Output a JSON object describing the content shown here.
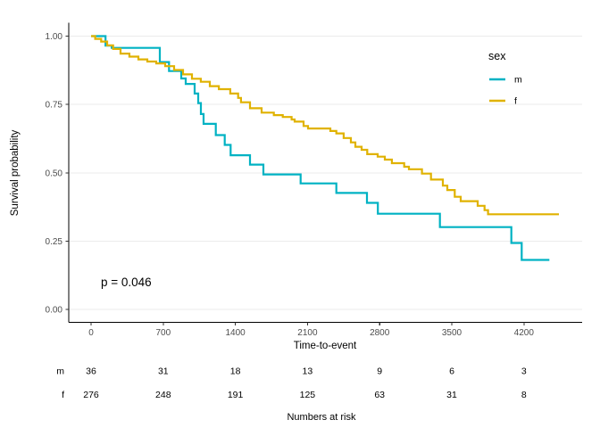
{
  "chart_data": {
    "type": "line",
    "subtype": "kaplan-meier-step",
    "title": "",
    "xlabel": "Time-to-event",
    "ylabel": "Survival probability",
    "x_tick_values": [
      0,
      700,
      1400,
      2100,
      2800,
      3500,
      4200
    ],
    "x_tick_labels": [
      "0",
      "700",
      "1400",
      "2100",
      "2800",
      "3500",
      "4200"
    ],
    "y_tick_values": [
      0,
      0.25,
      0.5,
      0.75,
      1
    ],
    "y_tick_labels": [
      "0.00",
      "0.25",
      "0.50",
      "0.75",
      "1.00"
    ],
    "xlim": [
      -230,
      4770
    ],
    "ylim": [
      -0.05,
      1.05
    ],
    "grid": "horizontal-only",
    "p_value_label": "p = 0.046",
    "legend": {
      "title": "sex",
      "position": "inside-top-right",
      "entries": [
        {
          "label": "m",
          "color": "#00b2c3"
        },
        {
          "label": "f",
          "color": "#e0b200"
        }
      ]
    },
    "series": [
      {
        "name": "m",
        "color": "#00b2c3",
        "end_time": 4447,
        "points": [
          [
            0,
            1.0
          ],
          [
            140,
            0.965
          ],
          [
            200,
            0.957
          ],
          [
            667,
            0.905
          ],
          [
            756,
            0.872
          ],
          [
            875,
            0.845
          ],
          [
            918,
            0.825
          ],
          [
            1005,
            0.79
          ],
          [
            1040,
            0.755
          ],
          [
            1066,
            0.715
          ],
          [
            1092,
            0.679
          ],
          [
            1210,
            0.638
          ],
          [
            1297,
            0.602
          ],
          [
            1354,
            0.564
          ],
          [
            1542,
            0.53
          ],
          [
            1672,
            0.494
          ],
          [
            2033,
            0.461
          ],
          [
            2380,
            0.426
          ],
          [
            2677,
            0.39
          ],
          [
            2783,
            0.35
          ],
          [
            3385,
            0.301
          ],
          [
            4078,
            0.243
          ],
          [
            4178,
            0.181
          ]
        ]
      },
      {
        "name": "f",
        "color": "#e0b200",
        "end_time": 4540,
        "points": [
          [
            0,
            1.0
          ],
          [
            40,
            0.99
          ],
          [
            98,
            0.98
          ],
          [
            156,
            0.966
          ],
          [
            214,
            0.953
          ],
          [
            286,
            0.936
          ],
          [
            372,
            0.925
          ],
          [
            459,
            0.915
          ],
          [
            546,
            0.907
          ],
          [
            632,
            0.9
          ],
          [
            719,
            0.89
          ],
          [
            806,
            0.876
          ],
          [
            892,
            0.86
          ],
          [
            979,
            0.844
          ],
          [
            1065,
            0.833
          ],
          [
            1152,
            0.817
          ],
          [
            1240,
            0.806
          ],
          [
            1351,
            0.79
          ],
          [
            1427,
            0.774
          ],
          [
            1455,
            0.758
          ],
          [
            1542,
            0.736
          ],
          [
            1655,
            0.72
          ],
          [
            1773,
            0.711
          ],
          [
            1860,
            0.704
          ],
          [
            1946,
            0.695
          ],
          [
            1975,
            0.687
          ],
          [
            2062,
            0.671
          ],
          [
            2105,
            0.662
          ],
          [
            2322,
            0.653
          ],
          [
            2380,
            0.644
          ],
          [
            2451,
            0.627
          ],
          [
            2521,
            0.611
          ],
          [
            2564,
            0.595
          ],
          [
            2625,
            0.584
          ],
          [
            2680,
            0.568
          ],
          [
            2781,
            0.559
          ],
          [
            2850,
            0.548
          ],
          [
            2919,
            0.535
          ],
          [
            3038,
            0.522
          ],
          [
            3084,
            0.513
          ],
          [
            3211,
            0.497
          ],
          [
            3298,
            0.475
          ],
          [
            3413,
            0.453
          ],
          [
            3457,
            0.437
          ],
          [
            3529,
            0.412
          ],
          [
            3587,
            0.396
          ],
          [
            3751,
            0.379
          ],
          [
            3818,
            0.363
          ],
          [
            3852,
            0.348
          ]
        ]
      }
    ],
    "risk_table": {
      "caption": "Numbers at risk",
      "time_points": [
        0,
        700,
        1400,
        2100,
        2800,
        3500,
        4200
      ],
      "rows": [
        {
          "label": "m",
          "counts": [
            "36",
            "31",
            "18",
            "13",
            "9",
            "6",
            "3"
          ]
        },
        {
          "label": "f",
          "counts": [
            "276",
            "248",
            "191",
            "125",
            "63",
            "31",
            "8"
          ]
        }
      ]
    },
    "colors": {
      "gridline": "#ebebeb",
      "axis_line": "#000000",
      "tick_text": "#4d4d4d",
      "background": "#ffffff"
    }
  }
}
